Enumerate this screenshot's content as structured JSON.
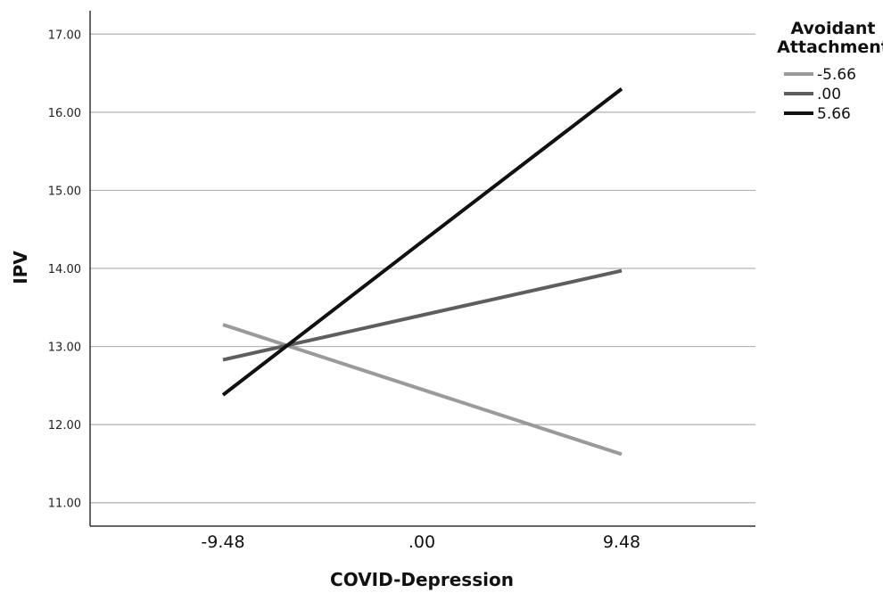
{
  "chart_data": {
    "type": "line",
    "xlabel": "COVID-Depression",
    "ylabel": "IPV",
    "x": [
      -9.48,
      0,
      9.48
    ],
    "x_tick_labels": [
      "-9.48",
      ".00",
      "9.48"
    ],
    "ylim": [
      10.7,
      17.3
    ],
    "y_ticks": [
      11,
      12,
      13,
      14,
      15,
      16,
      17
    ],
    "y_tick_labels": [
      "11.00",
      "12.00",
      "13.00",
      "14.00",
      "15.00",
      "16.00",
      "17.00"
    ],
    "grid": "horizontal",
    "legend": {
      "title_lines": [
        "Avoidant",
        "Attachment"
      ],
      "placement": "top-right"
    },
    "series": [
      {
        "name": "-5.66",
        "values": [
          13.28,
          12.45,
          11.62
        ],
        "color": "#9a9a9a"
      },
      {
        "name": ".00",
        "values": [
          12.83,
          13.4,
          13.97
        ],
        "color": "#5e5e5e"
      },
      {
        "name": "5.66",
        "values": [
          12.38,
          14.34,
          16.3
        ],
        "color": "#111111"
      }
    ]
  }
}
